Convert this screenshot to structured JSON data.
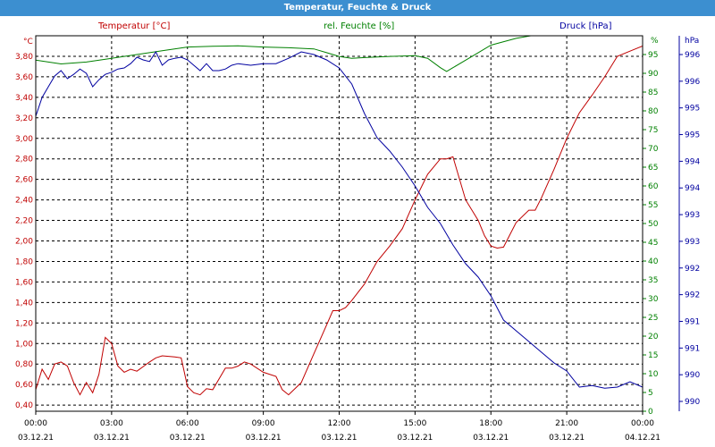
{
  "window": {
    "title": "Temperatur, Feuchte & Druck"
  },
  "legend": {
    "temperature": "Temperatur [°C]",
    "humidity": "rel. Feuchte [%]",
    "pressure": "Druck [hPa]"
  },
  "colors": {
    "temperature": "#c00000",
    "humidity": "#008000",
    "pressure": "#0000a0",
    "title_bg": "#3c8fd0"
  },
  "chart_data": {
    "type": "line",
    "title": "Temperatur, Feuchte & Druck",
    "grid": true,
    "x_ticks": [
      {
        "time": "00:00",
        "date": "03.12.21"
      },
      {
        "time": "03:00",
        "date": "03.12.21"
      },
      {
        "time": "06:00",
        "date": "03.12.21"
      },
      {
        "time": "09:00",
        "date": "03.12.21"
      },
      {
        "time": "12:00",
        "date": "03.12.21"
      },
      {
        "time": "15:00",
        "date": "03.12.21"
      },
      {
        "time": "18:00",
        "date": "03.12.21"
      },
      {
        "time": "21:00",
        "date": "03.12.21"
      },
      {
        "time": "00:00",
        "date": "04.12.21"
      }
    ],
    "xlim": [
      0,
      24
    ],
    "axes": {
      "temperature": {
        "unit": "°C",
        "ylim": [
          0.34,
          4.0
        ],
        "tick_labels": [
          "0,40",
          "0,60",
          "0,80",
          "1,00",
          "1,20",
          "1,40",
          "1,60",
          "1,80",
          "2,00",
          "2,20",
          "2,40",
          "2,60",
          "2,80",
          "3,00",
          "3,20",
          "3,40",
          "3,60",
          "3,80"
        ]
      },
      "humidity": {
        "unit": "%",
        "ylim": [
          0,
          100
        ],
        "tick_labels": [
          "0",
          "5",
          "10",
          "15",
          "20",
          "25",
          "30",
          "35",
          "40",
          "45",
          "50",
          "55",
          "60",
          "65",
          "70",
          "75",
          "80",
          "85",
          "90",
          "95"
        ]
      },
      "pressure": {
        "unit": "hPa",
        "ylim": [
          989.5,
          996.5
        ],
        "tick_labels": [
          "990",
          "990",
          "991",
          "991",
          "992",
          "992",
          "993",
          "993",
          "994",
          "994",
          "995",
          "995",
          "996",
          "996"
        ]
      }
    },
    "series": [
      {
        "name": "Temperatur [°C]",
        "axis": "temperature",
        "x": [
          0,
          0.25,
          0.5,
          0.75,
          1,
          1.25,
          1.5,
          1.75,
          2,
          2.25,
          2.5,
          2.75,
          3,
          3.25,
          3.5,
          3.75,
          4,
          4.5,
          4.75,
          5,
          5.5,
          5.75,
          6,
          6.25,
          6.5,
          6.75,
          7,
          7.5,
          7.75,
          8,
          8.25,
          8.5,
          9,
          9.5,
          9.75,
          10,
          10.5,
          11,
          11.5,
          11.75,
          12,
          12.25,
          12.5,
          13,
          13.5,
          14,
          14.5,
          15,
          15.5,
          16,
          16.25,
          16.5,
          17,
          17.5,
          17.75,
          18,
          18.25,
          18.5,
          19,
          19.5,
          19.75,
          20,
          20.5,
          21,
          21.5,
          22,
          22.5,
          23,
          23.5,
          24
        ],
        "values": [
          0.55,
          0.75,
          0.65,
          0.8,
          0.82,
          0.78,
          0.62,
          0.5,
          0.62,
          0.52,
          0.7,
          1.06,
          1.0,
          0.78,
          0.72,
          0.75,
          0.73,
          0.82,
          0.86,
          0.88,
          0.87,
          0.86,
          0.58,
          0.52,
          0.5,
          0.56,
          0.55,
          0.76,
          0.76,
          0.78,
          0.82,
          0.8,
          0.72,
          0.68,
          0.55,
          0.5,
          0.62,
          0.9,
          1.18,
          1.32,
          1.32,
          1.35,
          1.42,
          1.58,
          1.8,
          1.95,
          2.12,
          2.4,
          2.65,
          2.8,
          2.8,
          2.82,
          2.4,
          2.2,
          2.05,
          1.95,
          1.93,
          1.94,
          2.18,
          2.3,
          2.3,
          2.42,
          2.7,
          3.0,
          3.25,
          3.42,
          3.6,
          3.8,
          3.85,
          3.9
        ]
      },
      {
        "name": "rel. Feuchte [%]",
        "axis": "humidity",
        "x": [
          0,
          1,
          2,
          3,
          4,
          5,
          6,
          7,
          8,
          9,
          10,
          11,
          11.5,
          12,
          12.5,
          13,
          14,
          15,
          15.5,
          16,
          16.25,
          16.5,
          17,
          17.5,
          18,
          19,
          20,
          20.5,
          21
        ],
        "values": [
          93.5,
          92.5,
          93,
          94,
          95,
          96,
          97,
          97.2,
          97.3,
          97,
          96.8,
          96.5,
          95.5,
          94.5,
          94,
          94.2,
          94.5,
          94.7,
          94,
          91.5,
          90.5,
          91.5,
          93.5,
          95.5,
          97.5,
          99.3,
          100.5,
          101.5,
          102
        ]
      },
      {
        "name": "Druck [hPa]",
        "axis": "pressure",
        "x": [
          0,
          0.25,
          0.5,
          0.75,
          1,
          1.25,
          1.5,
          1.75,
          2,
          2.25,
          2.5,
          2.75,
          3,
          3.25,
          3.5,
          3.75,
          4,
          4.25,
          4.5,
          4.75,
          5,
          5.25,
          5.5,
          5.75,
          6,
          6.5,
          6.75,
          7,
          7.25,
          7.5,
          7.75,
          8,
          8.5,
          9,
          9.5,
          10,
          10.5,
          11,
          11.5,
          12,
          12.5,
          13,
          13.5,
          14,
          14.5,
          15,
          15.5,
          16,
          16.5,
          17,
          17.5,
          18,
          18.5,
          19,
          19.5,
          20,
          20.5,
          21,
          21.5,
          22,
          22.5,
          23,
          23.5,
          24
        ],
        "values": [
          995.0,
          995.35,
          995.55,
          995.75,
          995.85,
          995.7,
          995.78,
          995.88,
          995.8,
          995.55,
          995.68,
          995.78,
          995.82,
          995.88,
          995.9,
          995.98,
          996.1,
          996.05,
          996.02,
          996.2,
          995.95,
          996.05,
          996.08,
          996.1,
          996.05,
          995.85,
          995.98,
          995.85,
          995.85,
          995.88,
          995.95,
          995.98,
          995.95,
          995.98,
          995.98,
          996.08,
          996.2,
          996.15,
          996.05,
          995.9,
          995.6,
          995.05,
          994.6,
          994.35,
          994.05,
          993.7,
          993.3,
          993.0,
          992.6,
          992.25,
          992.0,
          991.65,
          991.2,
          991.0,
          990.8,
          990.6,
          990.4,
          990.25,
          989.95,
          989.98,
          989.93,
          989.95,
          990.05,
          989.95
        ]
      }
    ]
  }
}
